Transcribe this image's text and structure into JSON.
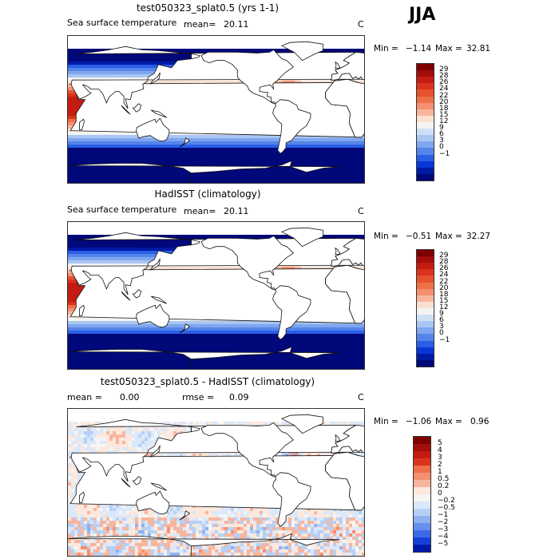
{
  "season": "JJA",
  "panels": [
    {
      "title": "test050323_splat0.5 (yrs 1-1)",
      "varname": "Sea surface temperature",
      "stat_label": "mean=",
      "stat_value": "20.11",
      "units": "C",
      "min_label": "Min =",
      "min_value": "−1.14",
      "max_label": "Max =",
      "max_value": "32.81",
      "colorbar_labels": [
        "29",
        "28",
        "26",
        "24",
        "22",
        "20",
        "18",
        "15",
        "12",
        "9",
        "6",
        "3",
        "0",
        "−1"
      ],
      "field": "sst"
    },
    {
      "title": "HadISST (climatology)",
      "varname": "Sea surface temperature",
      "stat_label": "mean=",
      "stat_value": "20.11",
      "units": "C",
      "min_label": "Min =",
      "min_value": "−0.51",
      "max_label": "Max =",
      "max_value": "32.27",
      "colorbar_labels": [
        "29",
        "28",
        "26",
        "24",
        "22",
        "20",
        "18",
        "15",
        "12",
        "9",
        "6",
        "3",
        "0",
        "−1"
      ],
      "field": "sst"
    },
    {
      "title": "test050323_splat0.5 - HadISST (climatology)",
      "mean_label": "mean =",
      "mean_value": "0.00",
      "rmse_label": "rmse =",
      "rmse_value": "0.09",
      "units": "C",
      "min_label": "Min =",
      "min_value": "−1.06",
      "max_label": "Max =",
      "max_value": "0.96",
      "colorbar_labels": [
        "5",
        "4",
        "3",
        "2",
        "1",
        "0.5",
        "0.2",
        "0",
        "−0.2",
        "−0.5",
        "−1",
        "−2",
        "−3",
        "−4",
        "−5"
      ],
      "field": "diff"
    }
  ],
  "colors": {
    "sst_scale": [
      "#7f0000",
      "#a30d0d",
      "#c41b12",
      "#d9341d",
      "#e5522e",
      "#ee7048",
      "#f49071",
      "#f8b59d",
      "#fbe0d2",
      "#f4f4f4",
      "#cfe0f6",
      "#a8c6f2",
      "#7fa6ee",
      "#5584ea",
      "#2a5ee6",
      "#0a35d6",
      "#001aa6",
      "#00087a"
    ],
    "diff_scale": [
      "#7f0000",
      "#a30d0d",
      "#c41b12",
      "#d9341d",
      "#ee7048",
      "#f49071",
      "#f8b59d",
      "#fde8dc",
      "#f5f5f5",
      "#dbe8f9",
      "#b7d0f5",
      "#8fb1f0",
      "#6690ec",
      "#3e6ae7",
      "#1740d8",
      "#0018a8"
    ]
  }
}
